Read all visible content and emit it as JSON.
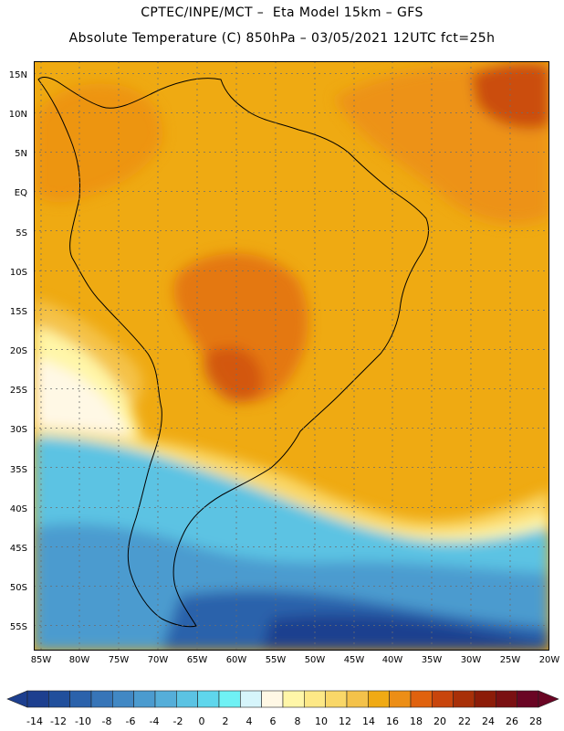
{
  "header": {
    "line1": "CPTEC/INPE/MCT –  Eta Model 15km – GFS",
    "line2": "Absolute Temperature (C) 850hPa – 03/05/2021 12UTC fct=25h"
  },
  "axes": {
    "lat_labels": [
      "15N",
      "10N",
      "5N",
      "EQ",
      "5S",
      "10S",
      "15S",
      "20S",
      "25S",
      "30S",
      "35S",
      "40S",
      "45S",
      "50S",
      "55S"
    ],
    "lon_labels": [
      "85W",
      "80W",
      "75W",
      "70W",
      "65W",
      "60W",
      "55W",
      "50W",
      "45W",
      "40W",
      "35W",
      "30W",
      "25W",
      "20W"
    ]
  },
  "colorbar": {
    "labels": [
      "-14",
      "-12",
      "-10",
      "-8",
      "-6",
      "-4",
      "-2",
      "0",
      "2",
      "4",
      "6",
      "8",
      "10",
      "12",
      "14",
      "16",
      "18",
      "20",
      "22",
      "24",
      "26",
      "28"
    ],
    "colors": [
      "#1d3f8f",
      "#214f9c",
      "#2b62ab",
      "#3775b8",
      "#4188c4",
      "#4b9bcf",
      "#55aed9",
      "#5bc3e3",
      "#5fd6ec",
      "#6ff1f4",
      "#d6f5fb",
      "#fff8e5",
      "#fff6a8",
      "#fde886",
      "#f9d768",
      "#f4c24a",
      "#f0aa14",
      "#ec8e16",
      "#e0620e",
      "#c8450c",
      "#a83008",
      "#8c1c08",
      "#7a1012",
      "#6a0524"
    ]
  },
  "map": {
    "background_color": "#efaa12"
  }
}
